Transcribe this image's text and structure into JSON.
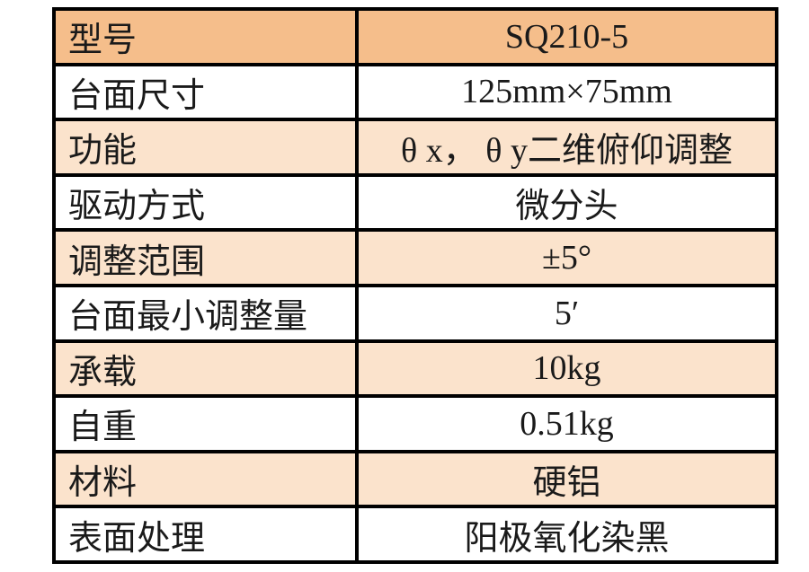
{
  "colors": {
    "header_row_bg": "#F5BE8B",
    "accent_row_bg": "#FBE3CC",
    "plain_row_bg": "#FFFFFF",
    "border": "#000000",
    "text": "#1A1A1A"
  },
  "spec_table": {
    "rows": [
      {
        "label": "型号",
        "value": "SQ210-5"
      },
      {
        "label": "台面尺寸",
        "value": "125mm×75mm"
      },
      {
        "label": "功能",
        "value": "θ x， θ y二维俯仰调整"
      },
      {
        "label": "驱动方式",
        "value": "微分头"
      },
      {
        "label": "调整范围",
        "value": "±5°"
      },
      {
        "label": "台面最小调整量",
        "value": "5′"
      },
      {
        "label": "承载",
        "value": "10kg"
      },
      {
        "label": "自重",
        "value": "0.51kg"
      },
      {
        "label": "材料",
        "value": "硬铝"
      },
      {
        "label": "表面处理",
        "value": "阳极氧化染黑"
      }
    ]
  }
}
